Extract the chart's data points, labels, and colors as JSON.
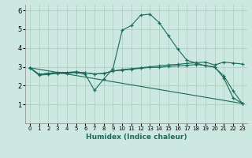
{
  "xlabel": "Humidex (Indice chaleur)",
  "background_color": "#cce8e0",
  "grid_color": "#aaccbb",
  "line_color": "#1a6b5a",
  "xlim": [
    -0.5,
    23.5
  ],
  "ylim": [
    0,
    6.3
  ],
  "xticks": [
    0,
    1,
    2,
    3,
    4,
    5,
    6,
    7,
    8,
    9,
    10,
    11,
    12,
    13,
    14,
    15,
    16,
    17,
    18,
    19,
    20,
    21,
    22,
    23
  ],
  "yticks": [
    1,
    2,
    3,
    4,
    5,
    6
  ],
  "curve1_x": [
    0,
    1,
    2,
    3,
    4,
    5,
    6,
    7,
    8,
    9,
    10,
    11,
    12,
    13,
    14,
    15,
    16,
    17,
    18,
    19,
    20,
    21,
    22,
    23
  ],
  "curve1_y": [
    2.95,
    2.55,
    2.6,
    2.65,
    2.65,
    2.7,
    2.6,
    1.75,
    2.35,
    2.9,
    4.95,
    5.2,
    5.75,
    5.8,
    5.35,
    4.65,
    3.95,
    3.35,
    3.2,
    3.05,
    3.0,
    2.4,
    1.35,
    1.05
  ],
  "curve2_x": [
    0,
    1,
    2,
    3,
    4,
    5,
    6,
    7,
    8,
    9,
    10,
    11,
    12,
    13,
    14,
    15,
    16,
    17,
    18,
    19,
    20,
    21,
    22,
    23
  ],
  "curve2_y": [
    2.95,
    2.6,
    2.65,
    2.7,
    2.7,
    2.73,
    2.68,
    2.62,
    2.65,
    2.78,
    2.85,
    2.9,
    2.95,
    3.0,
    3.05,
    3.1,
    3.13,
    3.18,
    3.22,
    3.25,
    3.1,
    3.25,
    3.2,
    3.15
  ],
  "curve3_x": [
    0,
    1,
    2,
    3,
    4,
    5,
    6,
    7,
    8,
    9,
    10,
    11,
    12,
    13,
    14,
    15,
    16,
    17,
    18,
    19,
    20,
    21,
    22,
    23
  ],
  "curve3_y": [
    2.95,
    2.6,
    2.65,
    2.7,
    2.7,
    2.73,
    2.68,
    2.62,
    2.65,
    2.78,
    2.82,
    2.87,
    2.92,
    2.97,
    2.97,
    3.02,
    3.05,
    3.08,
    3.12,
    3.08,
    2.97,
    2.52,
    1.72,
    1.05
  ],
  "curve4_x": [
    0,
    23
  ],
  "curve4_y": [
    2.95,
    1.05
  ]
}
